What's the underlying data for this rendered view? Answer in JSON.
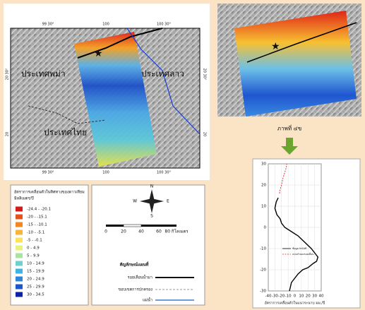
{
  "map": {
    "top_ticks": [
      "99 30°",
      "100",
      "100 30°"
    ],
    "bottom_ticks": [
      "99 30°",
      "100",
      "100 30°"
    ],
    "left_ticks": [
      "20 30°",
      "20"
    ],
    "right_ticks": [
      "20 30°",
      "20"
    ],
    "countries": [
      "ประเทศพม่า",
      "ประเทศลาว",
      "ประเทศไทย"
    ]
  },
  "legend": {
    "title": [
      "อัตราการเคลื่อนตัวในทิศทางของดาวเทียม",
      "มิลลิเมตร/ปี"
    ],
    "items": [
      {
        "label": "-24.4 - -20.1",
        "color": "#d7191c"
      },
      {
        "label": "-20 - -15.1",
        "color": "#e8501e"
      },
      {
        "label": "-15 - -10.1",
        "color": "#f5861f"
      },
      {
        "label": "-10 - -5.1",
        "color": "#f9b43a"
      },
      {
        "label": "-5 - -0.1",
        "color": "#fde35a"
      },
      {
        "label": "0 - 4.9",
        "color": "#e6f27a"
      },
      {
        "label": "5 - 9.9",
        "color": "#a9e3a3"
      },
      {
        "label": "10 - 14.9",
        "color": "#6fd0d0"
      },
      {
        "label": "15 - 19.9",
        "color": "#3fb2e6"
      },
      {
        "label": "20 - 24.9",
        "color": "#2c86dc"
      },
      {
        "label": "25 - 29.9",
        "color": "#1c56c8"
      },
      {
        "label": "30 - 34.5",
        "color": "#0c23a8"
      }
    ]
  },
  "symbols": {
    "compass": [
      "N",
      "S",
      "E",
      "W"
    ],
    "scale": [
      "0",
      "20",
      "40",
      "60",
      "80 กิโลเมตร"
    ],
    "title": "สัญลักษณ์แผนที่",
    "items": [
      "รอยเลื่อนน้ำมา",
      "ขอบเขตการปกครอง",
      "แม่น้ำ"
    ]
  },
  "inset": {
    "caption": "ภาพที่ ๔ข"
  },
  "chart_data": {
    "type": "line",
    "xlabel": "อัตราการเคลื่อนตัวในแนวระนาบ มม./ปี",
    "xlim": [
      -40,
      40
    ],
    "xticks": [
      -40,
      -30,
      -20,
      -10,
      0,
      10,
      20,
      30,
      40
    ],
    "ylim": [
      -30,
      30
    ],
    "yticks": [
      30,
      20,
      10,
      0,
      -10,
      -20,
      -30
    ],
    "grid": true,
    "series": [
      {
        "name": "ข้อมูล InSAR",
        "color": "#000000",
        "x": [
          -25,
          -28,
          -30,
          -27,
          -22,
          -20,
          -15,
          -5,
          5,
          15,
          25,
          30,
          35,
          33,
          28,
          20,
          12,
          5,
          0,
          -5,
          -8
        ],
        "y": [
          14,
          12,
          9,
          6,
          4,
          2,
          0,
          -2,
          -4,
          -7,
          -10,
          -12,
          -14,
          -16,
          -17,
          -19,
          -20,
          -22,
          -24,
          -26,
          -30
        ]
      },
      {
        "name": "แบบจำลองรอยเลื่อน",
        "color": "#d62728",
        "x": [
          -23,
          -22,
          -20,
          -18,
          -15,
          -13,
          -12
        ],
        "y": [
          16,
          18,
          20,
          23,
          26,
          28,
          30
        ]
      }
    ]
  }
}
